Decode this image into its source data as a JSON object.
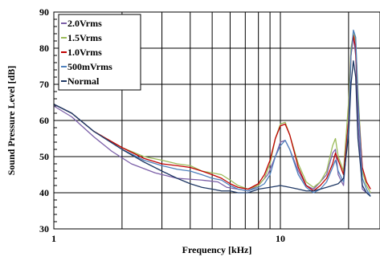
{
  "chart_data": {
    "type": "line",
    "title": "",
    "xlabel": "Frequency [kHz]",
    "ylabel": "Sound Pressure Level [dB]",
    "x_scale": "log",
    "xlim": [
      1,
      25
    ],
    "ylim": [
      30,
      90
    ],
    "x_ticks": [
      1,
      10
    ],
    "x_tick_labels": [
      "1",
      "10"
    ],
    "y_ticks": [
      30,
      40,
      50,
      60,
      70,
      80,
      90
    ],
    "y_tick_labels": [
      "30",
      "40",
      "50",
      "60",
      "70",
      "80",
      "90"
    ],
    "grid": true,
    "legend_position": "top-left",
    "series": [
      {
        "name": "2.0Vrms",
        "color": "#7b5fa8",
        "points": [
          [
            1,
            64
          ],
          [
            1.2,
            61
          ],
          [
            1.5,
            55.5
          ],
          [
            1.8,
            51.5
          ],
          [
            2.2,
            48
          ],
          [
            2.8,
            45.5
          ],
          [
            3.5,
            44
          ],
          [
            4.5,
            43.5
          ],
          [
            5.3,
            43
          ],
          [
            5.8,
            41.5
          ],
          [
            6.5,
            41
          ],
          [
            7.2,
            40.5
          ],
          [
            8,
            42
          ],
          [
            8.8,
            45
          ],
          [
            9.5,
            50
          ],
          [
            10,
            54
          ],
          [
            10.5,
            54.5
          ],
          [
            11,
            52
          ],
          [
            12,
            46
          ],
          [
            13,
            42
          ],
          [
            14,
            41
          ],
          [
            15,
            43
          ],
          [
            16,
            45
          ],
          [
            17,
            51
          ],
          [
            17.5,
            52
          ],
          [
            18,
            45
          ],
          [
            19,
            42
          ],
          [
            20,
            60
          ],
          [
            20.5,
            80
          ],
          [
            21,
            83
          ],
          [
            21.5,
            78
          ],
          [
            22,
            60
          ],
          [
            23,
            41
          ],
          [
            24,
            40
          ],
          [
            25,
            40
          ]
        ]
      },
      {
        "name": "1.5Vrms",
        "color": "#9bbb59",
        "points": [
          [
            1,
            64.5
          ],
          [
            1.2,
            62
          ],
          [
            1.5,
            57
          ],
          [
            2,
            52.5
          ],
          [
            2.5,
            50
          ],
          [
            3,
            49
          ],
          [
            3.5,
            48
          ],
          [
            4,
            47.5
          ],
          [
            4.5,
            46
          ],
          [
            5,
            45.5
          ],
          [
            5.5,
            45
          ],
          [
            6,
            43.5
          ],
          [
            6.5,
            42
          ],
          [
            7.2,
            41
          ],
          [
            8,
            42
          ],
          [
            8.5,
            44
          ],
          [
            9,
            48
          ],
          [
            9.5,
            55
          ],
          [
            10,
            59
          ],
          [
            10.5,
            59.5
          ],
          [
            11,
            56
          ],
          [
            12,
            48
          ],
          [
            13,
            43
          ],
          [
            14,
            41.5
          ],
          [
            15,
            43
          ],
          [
            16,
            46
          ],
          [
            17,
            53
          ],
          [
            17.5,
            55
          ],
          [
            18,
            50
          ],
          [
            19,
            46
          ],
          [
            20,
            65
          ],
          [
            20.5,
            80
          ],
          [
            21,
            84
          ],
          [
            21.5,
            82
          ],
          [
            22,
            68
          ],
          [
            23,
            46
          ],
          [
            24,
            42
          ],
          [
            25,
            40
          ]
        ]
      },
      {
        "name": "1.0Vrms",
        "color": "#c00000",
        "points": [
          [
            1,
            64.5
          ],
          [
            1.2,
            62
          ],
          [
            1.5,
            57
          ],
          [
            2,
            52.5
          ],
          [
            2.5,
            49.5
          ],
          [
            3,
            48
          ],
          [
            3.5,
            47.5
          ],
          [
            4,
            47
          ],
          [
            4.5,
            46
          ],
          [
            5,
            45
          ],
          [
            5.5,
            44
          ],
          [
            6,
            42.5
          ],
          [
            6.5,
            41.5
          ],
          [
            7.2,
            41
          ],
          [
            8,
            42.5
          ],
          [
            8.5,
            45
          ],
          [
            9,
            49
          ],
          [
            9.5,
            55
          ],
          [
            10,
            58.5
          ],
          [
            10.5,
            59
          ],
          [
            11,
            56
          ],
          [
            12,
            47
          ],
          [
            13,
            42
          ],
          [
            14,
            40.5
          ],
          [
            15,
            42
          ],
          [
            16,
            44
          ],
          [
            17,
            48
          ],
          [
            17.5,
            51
          ],
          [
            18,
            49
          ],
          [
            19,
            45
          ],
          [
            20,
            60
          ],
          [
            20.5,
            78
          ],
          [
            21,
            83.5
          ],
          [
            21.5,
            80
          ],
          [
            22,
            65
          ],
          [
            23,
            47
          ],
          [
            24,
            43
          ],
          [
            25,
            41
          ]
        ]
      },
      {
        "name": "500mVrms",
        "color": "#4f81bd",
        "points": [
          [
            1,
            64.5
          ],
          [
            1.2,
            62
          ],
          [
            1.5,
            57
          ],
          [
            2,
            52
          ],
          [
            2.5,
            49
          ],
          [
            3,
            47.5
          ],
          [
            3.5,
            46.5
          ],
          [
            4,
            46
          ],
          [
            4.5,
            45
          ],
          [
            5,
            44
          ],
          [
            5.5,
            43.5
          ],
          [
            6,
            42
          ],
          [
            6.5,
            41
          ],
          [
            7.2,
            40.5
          ],
          [
            8,
            41.5
          ],
          [
            8.5,
            42.5
          ],
          [
            9,
            45
          ],
          [
            9.5,
            50
          ],
          [
            10,
            53
          ],
          [
            10.5,
            54.5
          ],
          [
            11,
            52
          ],
          [
            12,
            45
          ],
          [
            13,
            41.5
          ],
          [
            14,
            40
          ],
          [
            15,
            41
          ],
          [
            16,
            43
          ],
          [
            17,
            47
          ],
          [
            17.5,
            49
          ],
          [
            18,
            46
          ],
          [
            19,
            43
          ],
          [
            20,
            58
          ],
          [
            20.5,
            78
          ],
          [
            21,
            85
          ],
          [
            21.5,
            83
          ],
          [
            22,
            66
          ],
          [
            23,
            44
          ],
          [
            24,
            41
          ],
          [
            25,
            39
          ]
        ]
      },
      {
        "name": "Normal",
        "color": "#1f3864",
        "points": [
          [
            1,
            64.5
          ],
          [
            1.2,
            62
          ],
          [
            1.5,
            57
          ],
          [
            2,
            52
          ],
          [
            2.5,
            48.5
          ],
          [
            3,
            46
          ],
          [
            3.5,
            44
          ],
          [
            4,
            42.5
          ],
          [
            4.5,
            41.5
          ],
          [
            5,
            41
          ],
          [
            5.5,
            40.5
          ],
          [
            6,
            40.5
          ],
          [
            6.5,
            40
          ],
          [
            7.2,
            40
          ],
          [
            8,
            41
          ],
          [
            9,
            41.5
          ],
          [
            10,
            42
          ],
          [
            11,
            41.5
          ],
          [
            12,
            41
          ],
          [
            13,
            40.5
          ],
          [
            14,
            40.5
          ],
          [
            15,
            41
          ],
          [
            16,
            41.5
          ],
          [
            17,
            42
          ],
          [
            18,
            42.5
          ],
          [
            19,
            44
          ],
          [
            20,
            56
          ],
          [
            20.5,
            70
          ],
          [
            21,
            76.5
          ],
          [
            21.5,
            72
          ],
          [
            22,
            55
          ],
          [
            23,
            42
          ],
          [
            24,
            40
          ],
          [
            25,
            39
          ]
        ]
      }
    ]
  }
}
